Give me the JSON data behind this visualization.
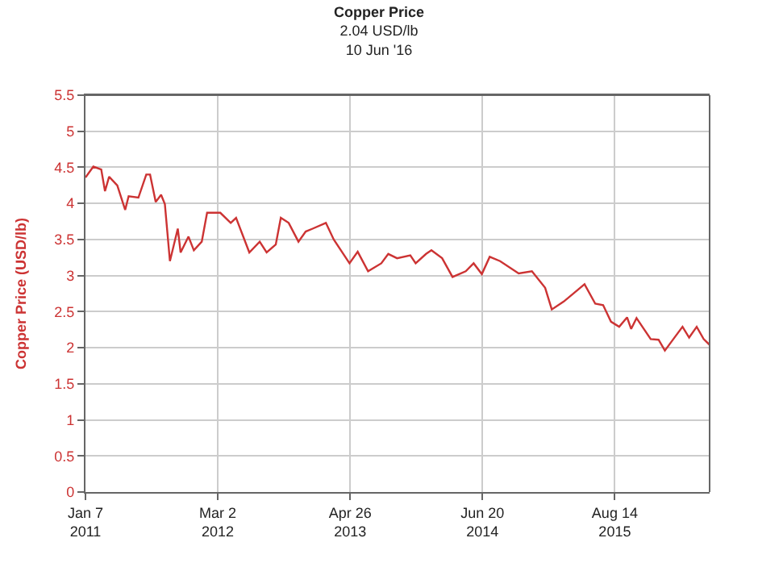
{
  "chart_data": {
    "type": "line",
    "title": "Copper Price",
    "subtitle": "2.04 USD/lb\n10 Jun '16",
    "ylabel": "Copper Price (USD/lb)",
    "x": [
      "2011-01-07",
      "2011-02-01",
      "2011-02-26",
      "2011-03-10",
      "2011-03-23",
      "2011-04-18",
      "2011-05-13",
      "2011-05-24",
      "2011-06-24",
      "2011-07-19",
      "2011-07-31",
      "2011-08-18",
      "2011-09-04",
      "2011-09-16",
      "2011-10-02",
      "2011-10-27",
      "2011-11-05",
      "2011-11-30",
      "2011-12-17",
      "2012-01-11",
      "2012-01-28",
      "2012-03-10",
      "2012-04-12",
      "2012-04-29",
      "2012-06-10",
      "2012-07-13",
      "2012-08-04",
      "2012-09-02",
      "2012-09-18",
      "2012-10-13",
      "2012-11-13",
      "2012-12-06",
      "2012-12-28",
      "2013-02-08",
      "2013-03-05",
      "2013-04-24",
      "2013-05-20",
      "2013-06-22",
      "2013-08-03",
      "2013-08-25",
      "2013-09-22",
      "2013-11-03",
      "2013-11-20",
      "2013-12-23",
      "2014-01-09",
      "2014-02-12",
      "2014-03-17",
      "2014-04-28",
      "2014-05-23",
      "2014-06-18",
      "2014-07-13",
      "2014-08-15",
      "2014-10-13",
      "2014-11-24",
      "2015-01-05",
      "2015-01-26",
      "2015-03-05",
      "2015-04-07",
      "2015-05-10",
      "2015-06-13",
      "2015-07-08",
      "2015-08-02",
      "2015-08-28",
      "2015-09-22",
      "2015-10-05",
      "2015-10-22",
      "2015-12-06",
      "2015-12-31",
      "2016-01-20",
      "2016-02-16",
      "2016-03-16",
      "2016-04-06",
      "2016-04-30",
      "2016-05-22",
      "2016-06-10"
    ],
    "series": [
      {
        "color": "#cc3333",
        "values": [
          4.36,
          4.51,
          4.47,
          4.17,
          4.37,
          4.25,
          3.91,
          4.1,
          4.08,
          4.4,
          4.4,
          4.02,
          4.12,
          3.99,
          3.2,
          3.65,
          3.32,
          3.54,
          3.35,
          3.47,
          3.87,
          3.87,
          3.73,
          3.8,
          3.32,
          3.47,
          3.32,
          3.43,
          3.8,
          3.73,
          3.47,
          3.61,
          3.65,
          3.73,
          3.5,
          3.17,
          3.33,
          3.06,
          3.17,
          3.3,
          3.24,
          3.28,
          3.17,
          3.3,
          3.35,
          3.24,
          2.98,
          3.06,
          3.17,
          3.02,
          3.26,
          3.2,
          3.03,
          3.06,
          2.83,
          2.53,
          2.64,
          2.76,
          2.88,
          2.61,
          2.59,
          2.36,
          2.29,
          2.42,
          2.26,
          2.41,
          2.12,
          2.11,
          1.96,
          2.12,
          2.29,
          2.14,
          2.29,
          2.12,
          2.04
        ]
      }
    ],
    "xlim": [
      "2011-01-07",
      "2016-06-10"
    ],
    "xticks": [
      {
        "value": "2011-01-07",
        "label": "Jan 7\n2011"
      },
      {
        "value": "2012-03-02",
        "label": "Mar 2\n2012"
      },
      {
        "value": "2013-04-26",
        "label": "Apr 26\n2013"
      },
      {
        "value": "2014-06-20",
        "label": "Jun 20\n2014"
      },
      {
        "value": "2015-08-14",
        "label": "Aug 14\n2015"
      }
    ],
    "ylim": [
      0,
      5.5
    ],
    "yticks": [
      0,
      0.5,
      1,
      1.5,
      2,
      2.5,
      3,
      3.5,
      4,
      4.5,
      5,
      5.5
    ],
    "grid": true,
    "marker": "none",
    "line_style": "solid"
  }
}
